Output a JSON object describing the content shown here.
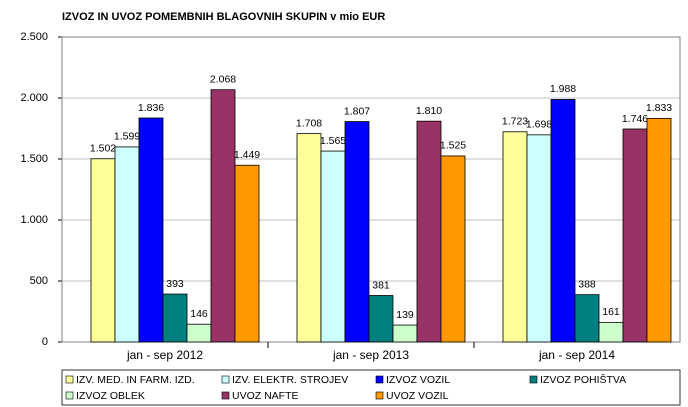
{
  "chart_data": {
    "type": "bar",
    "title": "IZVOZ IN UVOZ POMEMBNIH BLAGOVNIH SKUPIN v mio EUR",
    "categories": [
      "jan - sep 2012",
      "jan - sep 2013",
      "jan - sep 2014"
    ],
    "series": [
      {
        "name": "IZV. MED. IN FARM. IZD.",
        "color": "#ffff99",
        "values": [
          1502,
          1708,
          1723
        ],
        "value_labels": [
          "1.502",
          "1.708",
          "1.723"
        ]
      },
      {
        "name": "IZV. ELEKTR. STROJEV",
        "color": "#ccffff",
        "values": [
          1599,
          1565,
          1698
        ],
        "value_labels": [
          "1.599",
          "1.565",
          "1.698"
        ]
      },
      {
        "name": "IZVOZ VOZIL",
        "color": "#0000ff",
        "values": [
          1836,
          1807,
          1988
        ],
        "value_labels": [
          "1.836",
          "1.807",
          "1.988"
        ]
      },
      {
        "name": "IZVOZ POHIŠTVA",
        "color": "#008080",
        "values": [
          393,
          381,
          388
        ]
      },
      {
        "name": "IZVOZ OBLEK",
        "color": "#ccffcc",
        "values": [
          146,
          139,
          161
        ]
      },
      {
        "name": "UVOZ NAFTE",
        "color": "#993366",
        "values": [
          2068,
          1810,
          1746
        ],
        "value_labels": [
          "2.068",
          "1.810",
          "1.746"
        ]
      },
      {
        "name": "UVOZ VOZIL",
        "color": "#ff9900",
        "values": [
          1449,
          1525,
          1833
        ],
        "value_labels": [
          "1.449",
          "1.525",
          "1.833"
        ]
      }
    ],
    "ylim": [
      0,
      2500
    ],
    "yticks": [
      0,
      500,
      {
        "value": 1000,
        "label": "1.000"
      },
      {
        "value": 1500,
        "label": "1.500"
      },
      {
        "value": 2000,
        "label": "2.000"
      },
      {
        "value": 2500,
        "label": "2.500"
      }
    ],
    "grid": true,
    "legend": "bottom"
  }
}
